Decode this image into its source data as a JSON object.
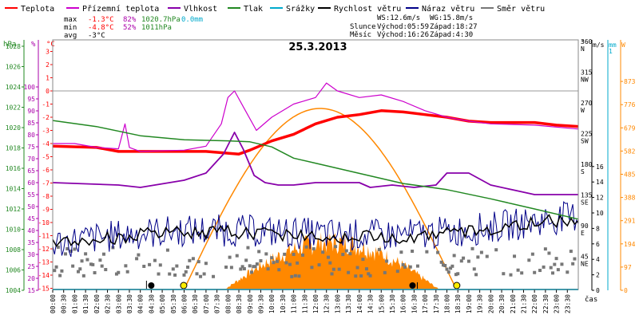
{
  "legend": [
    {
      "label": "Teplota",
      "color": "#ff0000"
    },
    {
      "label": "Přízemní teplota",
      "color": "#cc00cc"
    },
    {
      "label": "Vlhkost",
      "color": "#8800aa"
    },
    {
      "label": "Tlak",
      "color": "#228822"
    },
    {
      "label": "Srážky",
      "color": "#00aacc"
    },
    {
      "label": "Rychlost větru",
      "color": "#000000"
    },
    {
      "label": "Náraz větru",
      "color": "#000088"
    },
    {
      "label": "Směr větru",
      "color": "#777777"
    }
  ],
  "stats": {
    "max": {
      "label": "max",
      "temp": "-1.3°C",
      "hum": "82%",
      "press": "1020.7hPa",
      "rain": "0.0mm"
    },
    "min": {
      "label": "min",
      "temp": "-4.8°C",
      "hum": "52%",
      "press": "1011hPa"
    },
    "avg": {
      "label": "avg",
      "temp": "-3°C"
    }
  },
  "wind_info": {
    "ws": "WS:12.6m/s",
    "wg": "WG:15.8m/s"
  },
  "sun_info": {
    "label": "Slunce",
    "rise": "Východ:05:59",
    "set": "Západ:18:27"
  },
  "moon_info": {
    "label": "Měsíc",
    "rise": "Východ:16:26",
    "set": "Západ:4:30"
  },
  "chart_data": {
    "type": "line",
    "title": "25.3.2013",
    "xlabel": "čas",
    "colors": {
      "temp": "#ff0000",
      "ground": "#cc00cc",
      "hum": "#8800aa",
      "press": "#228822",
      "wind": "#000000",
      "gust": "#000088",
      "dir": "#777777",
      "sun": "#ff8800",
      "rain": "#00aacc"
    },
    "left_axes": [
      {
        "unit": "hPa",
        "color": "#228822",
        "ticks": [
          "1004",
          "1006",
          "1008",
          "1010",
          "1012",
          "1014",
          "1016",
          "1018",
          "1020",
          "1022",
          "1024",
          "1026",
          "1028"
        ]
      },
      {
        "unit": "%",
        "color": "#aa00aa",
        "ticks": [
          "15",
          "20",
          "25",
          "30",
          "35",
          "40",
          "45",
          "50",
          "55",
          "60",
          "65",
          "70",
          "75",
          "80",
          "85",
          "90",
          "95",
          "100"
        ]
      },
      {
        "unit": "°C",
        "color": "#ff0000",
        "ticks": [
          "-15",
          "-14",
          "-13",
          "-12",
          "-11",
          "-10",
          "-9",
          "-8",
          "-7",
          "-6",
          "-5",
          "-4",
          "-3",
          "-2",
          "-1",
          "0",
          "1",
          "2",
          "3"
        ]
      }
    ],
    "right_axes": {
      "dir_ticks": [
        {
          "deg": "360",
          "lbl": "N"
        },
        {
          "deg": "315",
          "lbl": "NW"
        },
        {
          "deg": "270",
          "lbl": "W"
        },
        {
          "deg": "225",
          "lbl": "SW"
        },
        {
          "deg": "180",
          "lbl": "S"
        },
        {
          "deg": "135",
          "lbl": "SE"
        },
        {
          "deg": "90",
          "lbl": "E"
        },
        {
          "deg": "45",
          "lbl": "NE"
        }
      ],
      "deg_unit": "°",
      "ms_unit": "m/s",
      "ms_ticks": [
        "0",
        "2",
        "4",
        "6",
        "8",
        "10",
        "12",
        "14",
        "16"
      ],
      "mm_unit": "mm",
      "mm_top": "1",
      "w_unit": "W",
      "w_ticks": [
        "0",
        "97",
        "194",
        "291",
        "388",
        "485",
        "582",
        "679",
        "776",
        "873"
      ]
    },
    "x_ticks": [
      "00:00",
      "00:30",
      "01:00",
      "01:30",
      "02:00",
      "02:30",
      "03:00",
      "03:30",
      "04:00",
      "04:30",
      "05:00",
      "05:30",
      "06:00",
      "06:30",
      "07:00",
      "07:30",
      "08:00",
      "08:30",
      "09:00",
      "09:30",
      "10:00",
      "10:30",
      "11:00",
      "11:30",
      "12:00",
      "12:30",
      "13:00",
      "13:30",
      "14:00",
      "14:30",
      "15:00",
      "15:30",
      "16:00",
      "16:30",
      "17:00",
      "17:30",
      "18:00",
      "18:30",
      "19:00",
      "19:30",
      "20:00",
      "20:30",
      "21:00",
      "21:30",
      "22:00",
      "22:30",
      "23:00",
      "23:30"
    ],
    "series": [
      {
        "name": "Teplota",
        "key": "temp",
        "unit": "°C",
        "points": [
          [
            0,
            -4.2
          ],
          [
            2,
            -4.3
          ],
          [
            3,
            -4.6
          ],
          [
            5,
            -4.6
          ],
          [
            7,
            -4.6
          ],
          [
            8.5,
            -4.8
          ],
          [
            9,
            -4.5
          ],
          [
            10,
            -3.8
          ],
          [
            11,
            -3.3
          ],
          [
            12,
            -2.5
          ],
          [
            13,
            -2
          ],
          [
            14,
            -1.8
          ],
          [
            15,
            -1.5
          ],
          [
            16,
            -1.6
          ],
          [
            17,
            -1.8
          ],
          [
            18,
            -2
          ],
          [
            19,
            -2.3
          ],
          [
            20,
            -2.4
          ],
          [
            22,
            -2.4
          ],
          [
            23,
            -2.6
          ],
          [
            24,
            -2.7
          ]
        ]
      },
      {
        "name": "Přízemní teplota",
        "key": "ground",
        "unit": "°C",
        "points": [
          [
            0,
            -4
          ],
          [
            1,
            -4
          ],
          [
            2,
            -4.3
          ],
          [
            3,
            -4.4
          ],
          [
            3.3,
            -2.5
          ],
          [
            3.5,
            -4.3
          ],
          [
            4,
            -4.6
          ],
          [
            6,
            -4.5
          ],
          [
            7,
            -4.2
          ],
          [
            7.7,
            -2.5
          ],
          [
            8,
            -0.5
          ],
          [
            8.3,
            0
          ],
          [
            8.8,
            -1.5
          ],
          [
            9.3,
            -3
          ],
          [
            10,
            -2
          ],
          [
            11,
            -1
          ],
          [
            12,
            -0.5
          ],
          [
            12.5,
            0.6
          ],
          [
            13,
            0
          ],
          [
            14,
            -0.5
          ],
          [
            15,
            -0.3
          ],
          [
            16,
            -0.8
          ],
          [
            17,
            -1.5
          ],
          [
            18,
            -2
          ],
          [
            19,
            -2.3
          ],
          [
            20,
            -2.5
          ],
          [
            22,
            -2.6
          ],
          [
            24,
            -2.9
          ]
        ]
      },
      {
        "name": "Vlhkost",
        "key": "hum",
        "unit": "%",
        "points": [
          [
            0,
            60
          ],
          [
            3,
            59
          ],
          [
            4,
            58
          ],
          [
            6,
            61
          ],
          [
            7,
            64
          ],
          [
            7.8,
            72
          ],
          [
            8.3,
            81
          ],
          [
            8.7,
            74
          ],
          [
            9.2,
            63
          ],
          [
            9.7,
            60
          ],
          [
            10.3,
            59
          ],
          [
            11,
            59
          ],
          [
            12,
            60
          ],
          [
            13,
            60
          ],
          [
            14,
            60
          ],
          [
            14.5,
            58
          ],
          [
            15.5,
            59
          ],
          [
            16.5,
            58
          ],
          [
            17.5,
            59
          ],
          [
            18,
            64
          ],
          [
            19,
            64
          ],
          [
            20,
            59
          ],
          [
            21,
            57
          ],
          [
            22,
            55
          ],
          [
            23,
            55
          ],
          [
            24,
            55
          ]
        ]
      },
      {
        "name": "Tlak",
        "key": "press",
        "unit": "hPa",
        "points": [
          [
            0,
            1020.7
          ],
          [
            2,
            1020.1
          ],
          [
            4,
            1019.2
          ],
          [
            6,
            1018.8
          ],
          [
            8,
            1018.7
          ],
          [
            9,
            1018.6
          ],
          [
            10,
            1018.1
          ],
          [
            11,
            1017
          ],
          [
            12,
            1016.5
          ],
          [
            14,
            1015.5
          ],
          [
            16,
            1014.5
          ],
          [
            18,
            1013.9
          ],
          [
            20,
            1013
          ],
          [
            22,
            1012
          ],
          [
            24,
            1011
          ]
        ]
      },
      {
        "name": "Slunce",
        "key": "sun",
        "unit": "W",
        "points": [
          [
            5.97,
            0
          ],
          [
            8,
            420
          ],
          [
            10,
            680
          ],
          [
            11.5,
            760
          ],
          [
            12.3,
            760
          ],
          [
            14,
            680
          ],
          [
            16,
            420
          ],
          [
            18.45,
            0
          ]
        ]
      }
    ],
    "rain_total": 0.0,
    "moon_rise_hour": 16.43,
    "moon_set_hour": 4.5,
    "sun_rise_hour": 5.98,
    "sun_set_hour": 18.45
  }
}
